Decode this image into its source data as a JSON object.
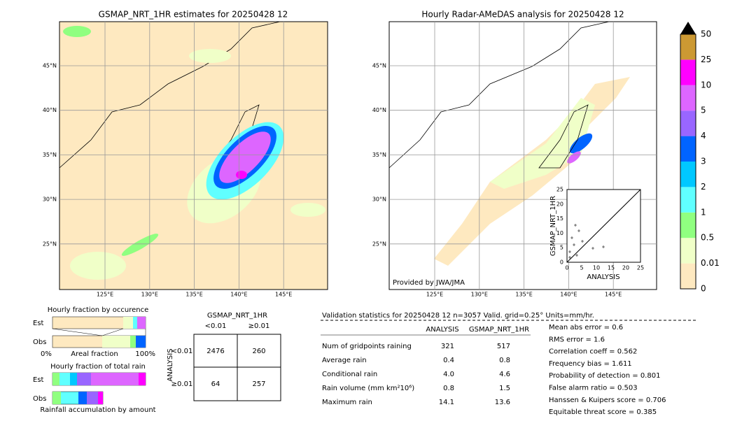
{
  "left_map": {
    "title": "GSMAP_NRT_1HR estimates for 20250428 12",
    "lat_labels": [
      "45°N",
      "40°N",
      "35°N",
      "30°N",
      "25°N"
    ],
    "lon_labels": [
      "125°E",
      "130°E",
      "135°E",
      "140°E",
      "145°E"
    ]
  },
  "right_map": {
    "title": "Hourly Radar-AMeDAS analysis for 20250428 12",
    "credit": "Provided by JWA/JMA",
    "lat_labels": [
      "45°N",
      "40°N",
      "35°N",
      "30°N",
      "25°N"
    ],
    "lon_labels": [
      "125°E",
      "130°E",
      "135°E",
      "140°E",
      "145°E"
    ]
  },
  "scatter": {
    "xlabel": "ANALYSIS",
    "ylabel": "GSMAP_NRT_1HR",
    "ticks": [
      "0",
      "5",
      "10",
      "15",
      "20",
      "25"
    ]
  },
  "colorbar": {
    "labels": [
      "0",
      "0.01",
      "0.5",
      "1",
      "2",
      "3",
      "4",
      "5",
      "10",
      "25",
      "50"
    ],
    "colors": [
      "#fee9c0",
      "#f0ffc8",
      "#90ff80",
      "#60ffff",
      "#00c8ff",
      "#0064ff",
      "#9966ff",
      "#dd66ff",
      "#ff00ff",
      "#cc9933"
    ]
  },
  "occurrence": {
    "title": "Hourly fraction by occurence",
    "rows": [
      "Est",
      "Obs"
    ],
    "axis": [
      "0%",
      "Areal fraction",
      "100%"
    ]
  },
  "total_rain": {
    "title": "Hourly fraction of total rain",
    "rows": [
      "Est",
      "Obs"
    ],
    "footer": "Rainfall accumulation by amount"
  },
  "contingency": {
    "title": "GSMAP_NRT_1HR",
    "cols": [
      "<0.01",
      "≥0.01"
    ],
    "side": "ANALYSIS",
    "rows": [
      "<0.01",
      "≥0.01"
    ],
    "cells": [
      [
        "2476",
        "260"
      ],
      [
        "64",
        "257"
      ]
    ]
  },
  "validation": {
    "header": "Validation statistics for 20250428 12  n=3057 Valid. grid=0.25° Units=mm/hr.",
    "cols": [
      "ANALYSIS",
      "GSMAP_NRT_1HR"
    ],
    "rows": [
      {
        "label": "Num of gridpoints raining",
        "values": [
          "321",
          "517"
        ]
      },
      {
        "label": "Average rain",
        "values": [
          "0.4",
          "0.8"
        ]
      },
      {
        "label": "Conditional rain",
        "values": [
          "4.0",
          "4.6"
        ]
      },
      {
        "label": "Rain volume (mm km²10⁶)",
        "values": [
          "0.8",
          "1.5"
        ]
      },
      {
        "label": "Maximum rain",
        "values": [
          "14.1",
          "13.6"
        ]
      }
    ],
    "scores": [
      "Mean abs error =    0.6",
      "RMS error =    1.6",
      "Correlation coeff =  0.562",
      "Frequency bias =  1.611",
      "Probability of detection =  0.801",
      "False alarm ratio =  0.503",
      "Hanssen & Kuipers score =  0.706",
      "Equitable threat score =  0.385"
    ]
  }
}
